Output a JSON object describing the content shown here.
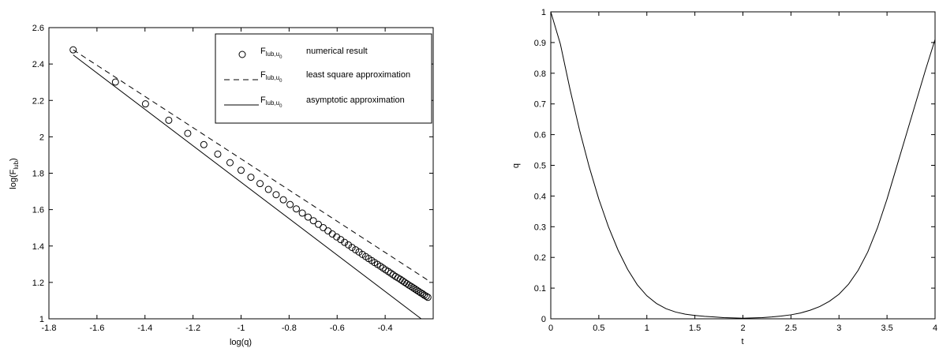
{
  "chart_data": [
    {
      "type": "scatter",
      "title": "",
      "xlabel": "log(q)",
      "ylabel_main": "log(F",
      "ylabel_sub": "lub",
      "ylabel_tail": ")",
      "xlim": [
        -1.8,
        -0.2
      ],
      "ylim": [
        1.0,
        2.6
      ],
      "xticks": [
        "-1.8",
        "-1.6",
        "-1.4",
        "-1.2",
        "-1",
        "-0.8",
        "-0.6",
        "-0.4"
      ],
      "yticks": [
        "1",
        "1.2",
        "1.4",
        "1.6",
        "1.8",
        "2",
        "2.2",
        "2.4",
        "2.6"
      ],
      "grid": false,
      "legend_position": "top-right",
      "legend": [
        {
          "symbol": "circle",
          "main": "F",
          "sub": "lub,u",
          "subsub": "0",
          "text": "numerical result"
        },
        {
          "symbol": "dashed",
          "main": "F",
          "sub": "lub,u",
          "subsub": "0",
          "text": "least square approximation"
        },
        {
          "symbol": "solid",
          "main": "F",
          "sub": "lub,u",
          "subsub": "0",
          "text": "asymptotic approximation"
        }
      ],
      "series": [
        {
          "style": "circle",
          "x": [
            -1.699,
            -1.523,
            -1.398,
            -1.301,
            -1.222,
            -1.155,
            -1.097,
            -1.046,
            -1.0,
            -0.959,
            -0.921,
            -0.886,
            -0.854,
            -0.824,
            -0.796,
            -0.77,
            -0.745,
            -0.721,
            -0.699,
            -0.678,
            -0.658,
            -0.638,
            -0.62,
            -0.602,
            -0.585,
            -0.569,
            -0.553,
            -0.538,
            -0.523,
            -0.509,
            -0.495,
            -0.481,
            -0.469,
            -0.456,
            -0.444,
            -0.432,
            -0.42,
            -0.409,
            -0.398,
            -0.387,
            -0.377,
            -0.367,
            -0.357,
            -0.347,
            -0.337,
            -0.328,
            -0.319,
            -0.31,
            -0.301,
            -0.292,
            -0.284,
            -0.276,
            -0.268,
            -0.26,
            -0.252,
            -0.244,
            -0.237,
            -0.229,
            -0.222
          ],
          "y": [
            2.478,
            2.301,
            2.181,
            2.091,
            2.019,
            1.957,
            1.905,
            1.858,
            1.816,
            1.778,
            1.743,
            1.711,
            1.682,
            1.654,
            1.628,
            1.604,
            1.581,
            1.559,
            1.539,
            1.519,
            1.501,
            1.483,
            1.466,
            1.45,
            1.435,
            1.42,
            1.406,
            1.392,
            1.379,
            1.367,
            1.354,
            1.342,
            1.331,
            1.32,
            1.309,
            1.299,
            1.289,
            1.279,
            1.269,
            1.26,
            1.251,
            1.242,
            1.233,
            1.225,
            1.217,
            1.209,
            1.201,
            1.193,
            1.185,
            1.178,
            1.171,
            1.164,
            1.157,
            1.15,
            1.143,
            1.137,
            1.13,
            1.124,
            1.118
          ]
        },
        {
          "style": "dashed",
          "x": [
            -1.699,
            -0.222
          ],
          "y": [
            2.478,
            1.212
          ]
        },
        {
          "style": "solid",
          "x": [
            -1.699,
            -0.25
          ],
          "y": [
            2.45,
            1.0
          ]
        }
      ]
    },
    {
      "type": "line",
      "title": "",
      "xlabel": "t",
      "ylabel": "q",
      "xlim": [
        0,
        4
      ],
      "ylim": [
        0,
        1
      ],
      "xticks": [
        "0",
        "0.5",
        "1",
        "1.5",
        "2",
        "2.5",
        "3",
        "3.5",
        "4"
      ],
      "yticks": [
        "0",
        "0.1",
        "0.2",
        "0.3",
        "0.4",
        "0.5",
        "0.6",
        "0.7",
        "0.8",
        "0.9",
        "1"
      ],
      "grid": false,
      "series": [
        {
          "style": "solid",
          "x": [
            0,
            0.1,
            0.2,
            0.3,
            0.4,
            0.5,
            0.6,
            0.7,
            0.8,
            0.9,
            1.0,
            1.1,
            1.2,
            1.3,
            1.4,
            1.5,
            1.6,
            1.7,
            1.8,
            1.9,
            2.0,
            2.1,
            2.2,
            2.3,
            2.4,
            2.5,
            2.6,
            2.7,
            2.8,
            2.9,
            3.0,
            3.1,
            3.2,
            3.3,
            3.4,
            3.5,
            3.6,
            3.7,
            3.8,
            3.9,
            4.0
          ],
          "y": [
            1.0,
            0.895,
            0.748,
            0.614,
            0.495,
            0.39,
            0.3,
            0.224,
            0.161,
            0.111,
            0.075,
            0.05,
            0.033,
            0.022,
            0.015,
            0.011,
            0.008,
            0.006,
            0.004,
            0.003,
            0.002,
            0.003,
            0.004,
            0.006,
            0.009,
            0.013,
            0.019,
            0.028,
            0.04,
            0.057,
            0.08,
            0.113,
            0.158,
            0.218,
            0.296,
            0.39,
            0.495,
            0.6,
            0.705,
            0.81,
            0.91
          ]
        }
      ]
    }
  ]
}
